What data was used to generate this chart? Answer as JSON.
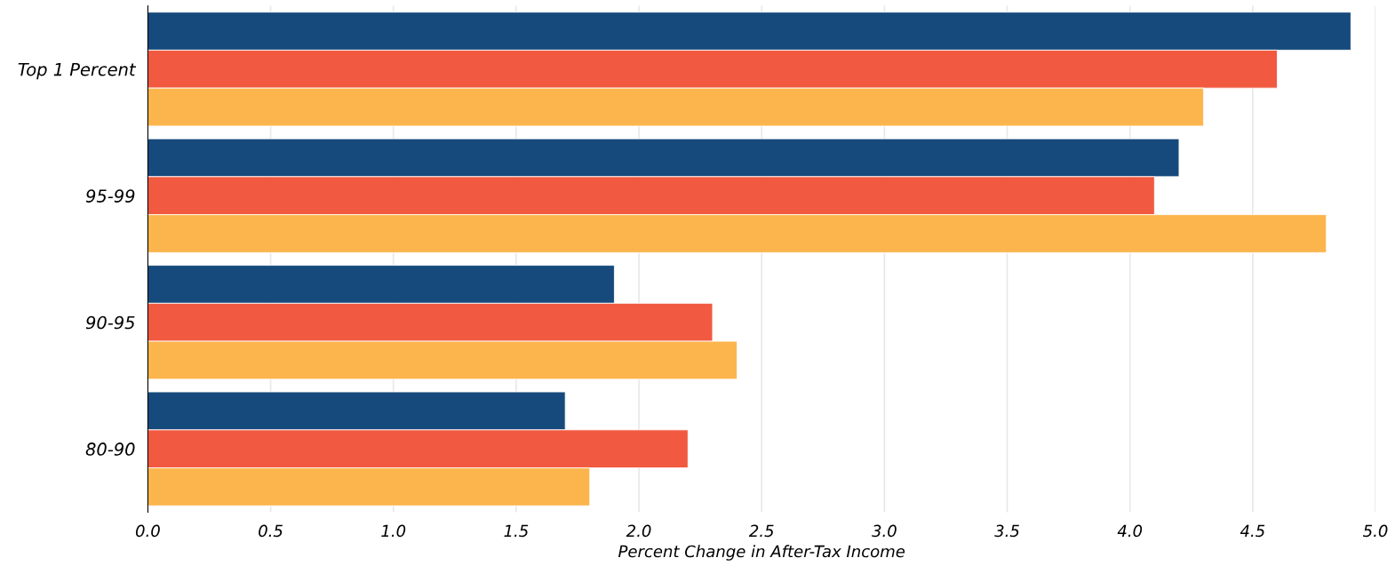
{
  "chart_data": {
    "type": "bar",
    "orientation": "horizontal",
    "xlabel": "Percent Change in After-Tax Income",
    "categories": [
      "Top 1 Percent",
      "95-99",
      "90-95",
      "80-90"
    ],
    "series": [
      {
        "color": "#174a7c",
        "values": [
          4.9,
          4.2,
          1.9,
          1.7
        ]
      },
      {
        "color": "#f15a40",
        "values": [
          4.6,
          4.1,
          2.3,
          2.2
        ]
      },
      {
        "color": "#fcb54d",
        "values": [
          4.3,
          4.8,
          2.4,
          1.8
        ]
      }
    ],
    "xlim": [
      0,
      5.0
    ],
    "xticks": [
      {
        "value": 0,
        "label": "0.0"
      },
      0.5,
      {
        "value": 1,
        "label": "1.0"
      },
      1.5,
      {
        "value": 2,
        "label": "2.0"
      },
      2.5,
      {
        "value": 3,
        "label": "3.0"
      },
      3.5,
      {
        "value": 4,
        "label": "4.0"
      },
      4.5,
      {
        "value": 5,
        "label": "5.0"
      }
    ],
    "grid": "x"
  }
}
